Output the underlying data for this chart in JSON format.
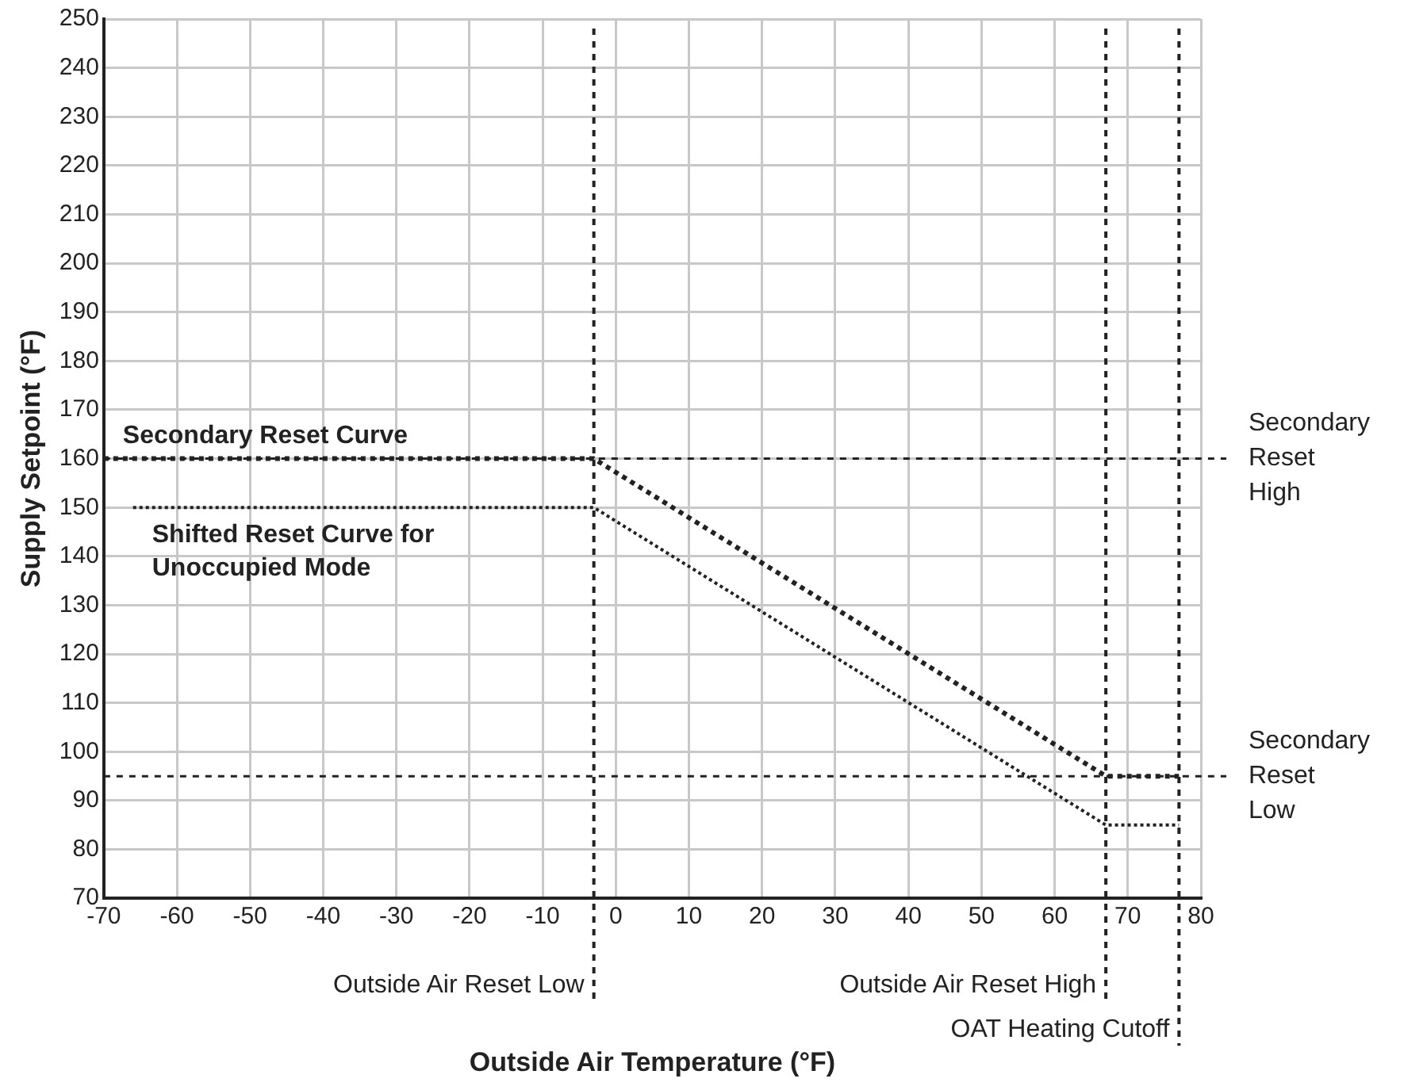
{
  "chart_data": {
    "type": "line",
    "xlabel": "Outside Air Temperature (°F)",
    "ylabel": "Supply Setpoint (°F)",
    "xlim": [
      -70,
      80
    ],
    "xticks": [
      -70,
      -60,
      -50,
      -40,
      -30,
      -20,
      -10,
      0,
      10,
      20,
      30,
      40,
      50,
      60,
      70,
      80
    ],
    "ylim": [
      70,
      250
    ],
    "yticks": [
      70,
      80,
      90,
      100,
      110,
      120,
      130,
      140,
      150,
      160,
      170,
      180,
      190,
      200,
      210,
      220,
      230,
      240,
      250
    ],
    "grid": true,
    "legend": false,
    "marker": "none",
    "series": [
      {
        "name": "Secondary Reset Curve",
        "color": "#222222",
        "line_style": "dotted",
        "x": [
          -70,
          -3,
          67,
          77
        ],
        "values": [
          160,
          160,
          95,
          95
        ]
      },
      {
        "name": "Shifted Reset Curve for Unoccupied Mode",
        "color": "#222222",
        "line_style": "dotted",
        "x": [
          -66,
          -3,
          67,
          77
        ],
        "values": [
          150,
          150,
          85,
          85
        ]
      }
    ],
    "ref_lines": [
      {
        "axis": "x",
        "value": -3,
        "label": "Outside Air Reset Low",
        "color": "#222222",
        "line_style": "dashed"
      },
      {
        "axis": "x",
        "value": 67,
        "label": "Outside Air Reset High",
        "color": "#222222",
        "line_style": "dashed"
      },
      {
        "axis": "x",
        "value": 77,
        "label": "OAT Heating Cutoff",
        "color": "#222222",
        "line_style": "dashed"
      },
      {
        "axis": "y",
        "value": 160,
        "label": "Secondary Reset High",
        "color": "#222222",
        "line_style": "dashed"
      },
      {
        "axis": "y",
        "value": 95,
        "label": "Secondary Reset Low",
        "color": "#222222",
        "line_style": "dashed"
      }
    ]
  }
}
